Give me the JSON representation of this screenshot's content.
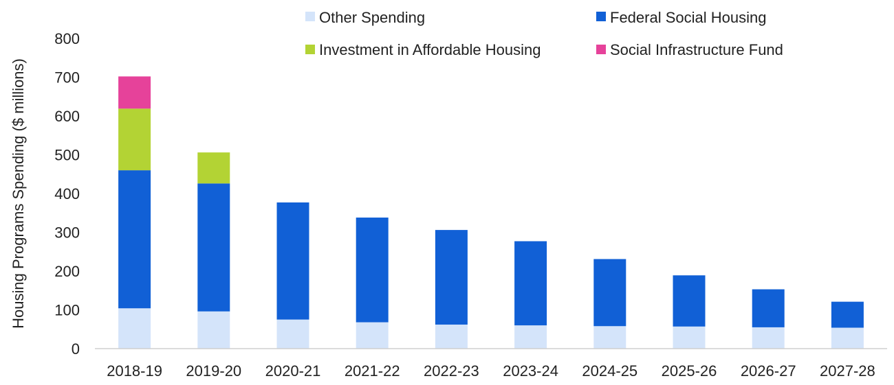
{
  "chart_data": {
    "type": "bar",
    "stacked": true,
    "title": "",
    "xlabel": "",
    "ylabel": "Housing Programs Spending ($ millions)",
    "ylim": [
      0,
      800
    ],
    "yticks": [
      0,
      100,
      200,
      300,
      400,
      500,
      600,
      700,
      800
    ],
    "grid": false,
    "legend_position": "top",
    "categories": [
      "2018-19",
      "2019-20",
      "2020-21",
      "2021-22",
      "2022-23",
      "2023-24",
      "2024-25",
      "2025-26",
      "2026-27",
      "2027-28"
    ],
    "series": [
      {
        "name": "Other Spending",
        "color": "#d4e4fa",
        "values": [
          104,
          96,
          75,
          68,
          62,
          60,
          58,
          57,
          55,
          54
        ]
      },
      {
        "name": "Federal Social Housing",
        "color": "#1160d6",
        "values": [
          356,
          330,
          302,
          270,
          244,
          217,
          173,
          132,
          98,
          67
        ]
      },
      {
        "name": "Investment in Affordable Housing",
        "color": "#b3d334",
        "values": [
          159,
          80,
          0,
          0,
          0,
          0,
          0,
          0,
          0,
          0
        ]
      },
      {
        "name": "Social Infrastructure Fund",
        "color": "#e6429a",
        "values": [
          83,
          0,
          0,
          0,
          0,
          0,
          0,
          0,
          0,
          0
        ]
      }
    ]
  }
}
